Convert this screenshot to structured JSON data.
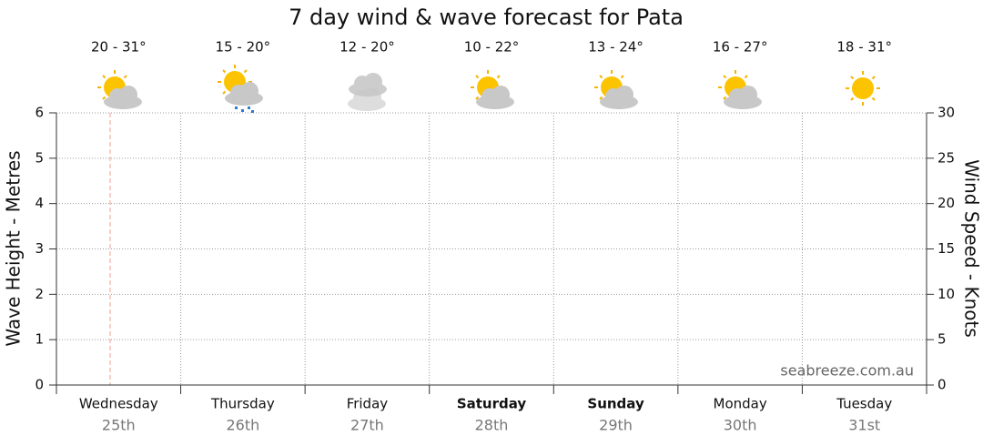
{
  "chart_data": {
    "type": "forecast",
    "title": "7 day wind & wave forecast for Pata",
    "days": [
      {
        "name": "Wednesday",
        "date": "25th",
        "temp": "20 - 31°",
        "bold": false
      },
      {
        "name": "Thursday",
        "date": "26th",
        "temp": "15 - 20°",
        "bold": false
      },
      {
        "name": "Friday",
        "date": "27th",
        "temp": "12 - 20°",
        "bold": false
      },
      {
        "name": "Saturday",
        "date": "28th",
        "temp": "10 - 22°",
        "bold": true
      },
      {
        "name": "Sunday",
        "date": "29th",
        "temp": "13 - 24°",
        "bold": true
      },
      {
        "name": "Monday",
        "date": "30th",
        "temp": "16 - 27°",
        "bold": false
      },
      {
        "name": "Tuesday",
        "date": "31st",
        "temp": "18 - 31°",
        "bold": false
      }
    ],
    "ylabel": "Wave Height - Metres",
    "ylim": [
      0,
      6
    ],
    "yticks": [
      0,
      1,
      2,
      3,
      4,
      5,
      6
    ],
    "y2label": "Wind Speed - Knots",
    "y2lim": [
      0,
      30
    ],
    "y2ticks": [
      0,
      5,
      10,
      15,
      20,
      25,
      30
    ],
    "watermark": "seabreeze.com.au",
    "grid": true
  }
}
